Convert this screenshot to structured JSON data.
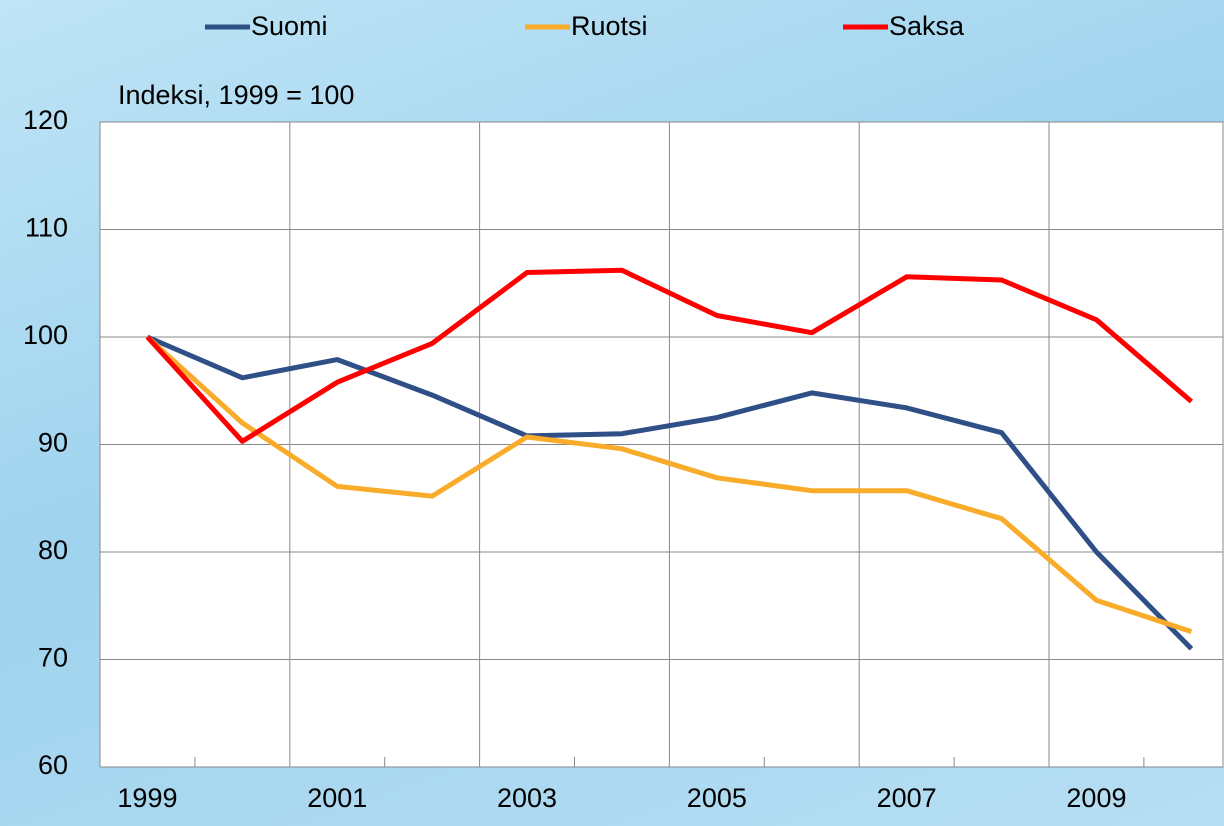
{
  "chart_data": {
    "type": "line",
    "y_label": "Indeksi, 1999 = 100",
    "categories": [
      "1999",
      null,
      "2001",
      null,
      "2003",
      null,
      "2005",
      null,
      "2007",
      null,
      "2009",
      null
    ],
    "series": [
      {
        "name": "Suomi",
        "color": "#2f4f87",
        "values": [
          100,
          96.2,
          97.9,
          94.6,
          90.8,
          91.0,
          92.5,
          94.8,
          93.4,
          91.1,
          80.0,
          71.0
        ]
      },
      {
        "name": "Ruotsi",
        "color": "#f9ab2a",
        "values": [
          100,
          92.0,
          86.1,
          85.2,
          90.7,
          89.6,
          86.9,
          85.7,
          85.7,
          83.1,
          75.5,
          72.6
        ]
      },
      {
        "name": "Saksa",
        "color": "#ff0000",
        "values": [
          100,
          90.3,
          95.8,
          99.4,
          106.0,
          106.2,
          102.0,
          100.4,
          105.6,
          105.3,
          101.6,
          94.0
        ]
      }
    ],
    "ylim": [
      60,
      120
    ],
    "yticks": [
      60,
      70,
      80,
      90,
      100,
      110,
      120
    ],
    "grid": true,
    "legend": "top"
  }
}
